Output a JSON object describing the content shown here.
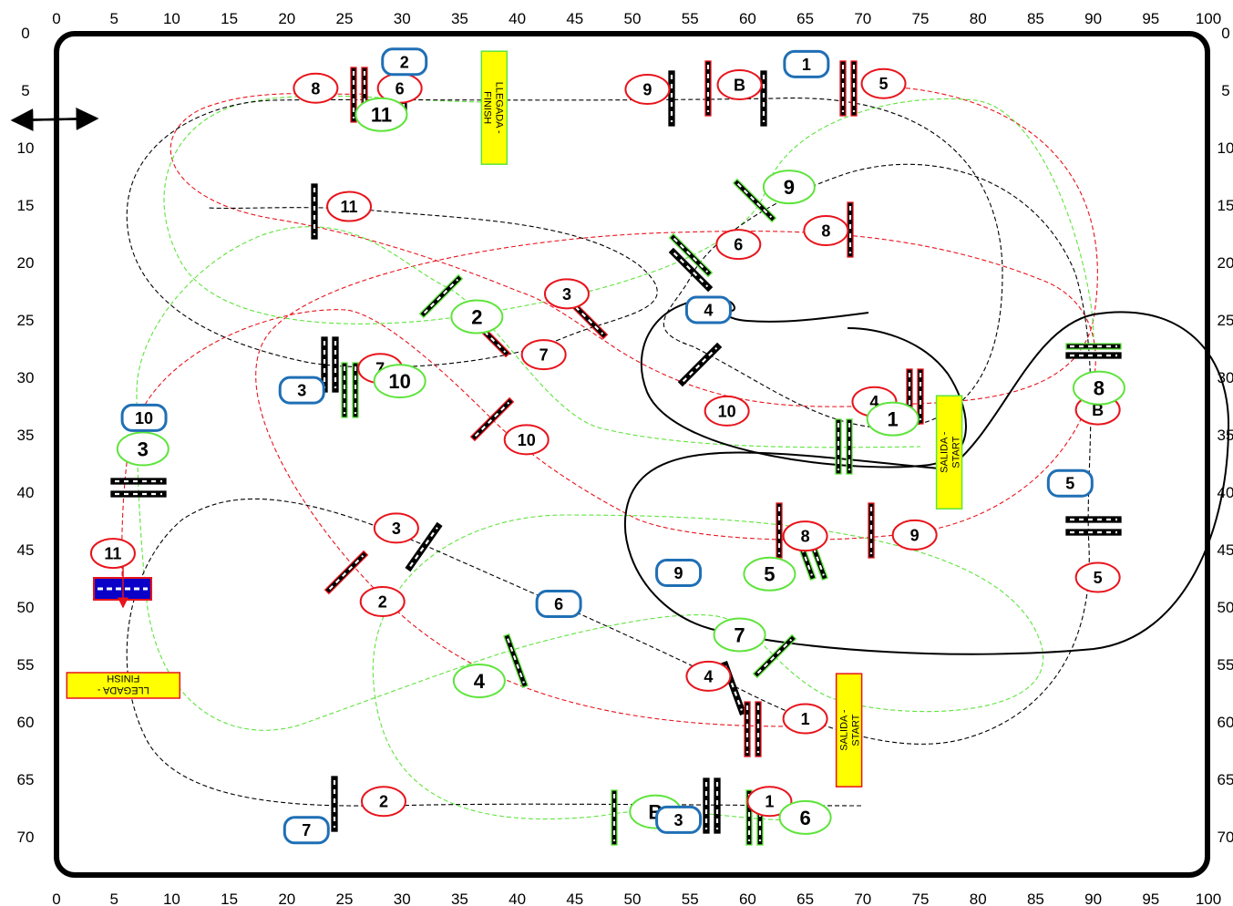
{
  "axis": {
    "x_ticks": [
      "0",
      "5",
      "10",
      "15",
      "20",
      "25",
      "30",
      "35",
      "40",
      "45",
      "50",
      "55",
      "60",
      "65",
      "70",
      "75",
      "80",
      "85",
      "90",
      "95",
      "100"
    ],
    "y_ticks": [
      "0",
      "5",
      "10",
      "15",
      "20",
      "25",
      "30",
      "35",
      "40",
      "45",
      "50",
      "55",
      "60",
      "65",
      "70"
    ]
  },
  "colors": {
    "red": "#e8141c",
    "green": "#5ee43c",
    "black": "#000000",
    "blue": "#1f6fb5",
    "sign_fill": "#ffff00",
    "blue_gate": "#0a00c8"
  },
  "course_markers": {
    "red": [
      {
        "label": "8",
        "x": 22.5,
        "y": 5.3
      },
      {
        "label": "6",
        "x": 29.8,
        "y": 5.3
      },
      {
        "label": "9",
        "x": 51.3,
        "y": 5.4
      },
      {
        "label": "B",
        "x": 59.3,
        "y": 5.0
      },
      {
        "label": "5",
        "x": 71.8,
        "y": 4.9
      },
      {
        "label": "6",
        "x": 59.2,
        "y": 18.9
      },
      {
        "label": "8",
        "x": 66.8,
        "y": 17.7
      },
      {
        "label": "3",
        "x": 44.3,
        "y": 23.2
      },
      {
        "label": "7",
        "x": 42.3,
        "y": 28.5
      },
      {
        "label": "7",
        "x": 28.1,
        "y": 29.7
      },
      {
        "label": "10",
        "x": 58.2,
        "y": 33.4
      },
      {
        "label": "4",
        "x": 71.0,
        "y": 32.6
      },
      {
        "label": "B",
        "x": 90.4,
        "y": 33.3
      },
      {
        "label": "10",
        "x": 40.8,
        "y": 35.9
      },
      {
        "label": "3",
        "x": 29.5,
        "y": 43.6
      },
      {
        "label": "8",
        "x": 65.0,
        "y": 44.3
      },
      {
        "label": "9",
        "x": 74.5,
        "y": 44.2
      },
      {
        "label": "11",
        "x": 4.9,
        "y": 45.8
      },
      {
        "label": "5",
        "x": 90.4,
        "y": 47.9
      },
      {
        "label": "2",
        "x": 28.3,
        "y": 50.0
      },
      {
        "label": "4",
        "x": 56.6,
        "y": 56.5
      },
      {
        "label": "1",
        "x": 65.0,
        "y": 60.2
      },
      {
        "label": "1",
        "x": 61.9,
        "y": 67.4
      },
      {
        "label": "2",
        "x": 28.4,
        "y": 67.4
      },
      {
        "label": "11",
        "x": 25.4,
        "y": 15.6
      }
    ],
    "green": [
      {
        "label": "11",
        "x": 28.2,
        "y": 7.6
      },
      {
        "label": "9",
        "x": 63.6,
        "y": 13.9
      },
      {
        "label": "2",
        "x": 36.5,
        "y": 25.2
      },
      {
        "label": "10",
        "x": 29.8,
        "y": 30.8
      },
      {
        "label": "1",
        "x": 72.6,
        "y": 34.1
      },
      {
        "label": "8",
        "x": 90.5,
        "y": 31.4
      },
      {
        "label": "3",
        "x": 7.5,
        "y": 36.7
      },
      {
        "label": "5",
        "x": 61.9,
        "y": 47.6
      },
      {
        "label": "7",
        "x": 59.3,
        "y": 52.9
      },
      {
        "label": "4",
        "x": 36.7,
        "y": 56.9
      },
      {
        "label": "B",
        "x": 52.0,
        "y": 68.3
      },
      {
        "label": "6",
        "x": 65.0,
        "y": 68.8
      }
    ],
    "blue": [
      {
        "label": "2",
        "x": 30.2,
        "y": 3.0
      },
      {
        "label": "1",
        "x": 65.1,
        "y": 3.2
      },
      {
        "label": "4",
        "x": 56.6,
        "y": 24.6
      },
      {
        "label": "3",
        "x": 21.3,
        "y": 31.6
      },
      {
        "label": "10",
        "x": 7.6,
        "y": 34.0
      },
      {
        "label": "5",
        "x": 88.0,
        "y": 39.7
      },
      {
        "label": "9",
        "x": 54.0,
        "y": 47.5
      },
      {
        "label": "6",
        "x": 43.6,
        "y": 50.2
      },
      {
        "label": "3",
        "x": 54.0,
        "y": 69.0
      },
      {
        "label": "7",
        "x": 21.7,
        "y": 69.9
      }
    ]
  },
  "signs": [
    {
      "text1": "LLEGADA -",
      "text2": "FINISH",
      "x": 38.0,
      "y": 7.0,
      "rotate": 90
    },
    {
      "text1": "SALIDA -",
      "text2": "START",
      "x": 77.5,
      "y": 37.0,
      "rotate": -90
    },
    {
      "text1": "SALIDA -",
      "text2": "START",
      "x": 68.8,
      "y": 61.2,
      "rotate": -90
    },
    {
      "text1": "LLEGADA -",
      "text2": "FINISH",
      "x": 5.8,
      "y": 57.3,
      "rotate": 180
    }
  ]
}
